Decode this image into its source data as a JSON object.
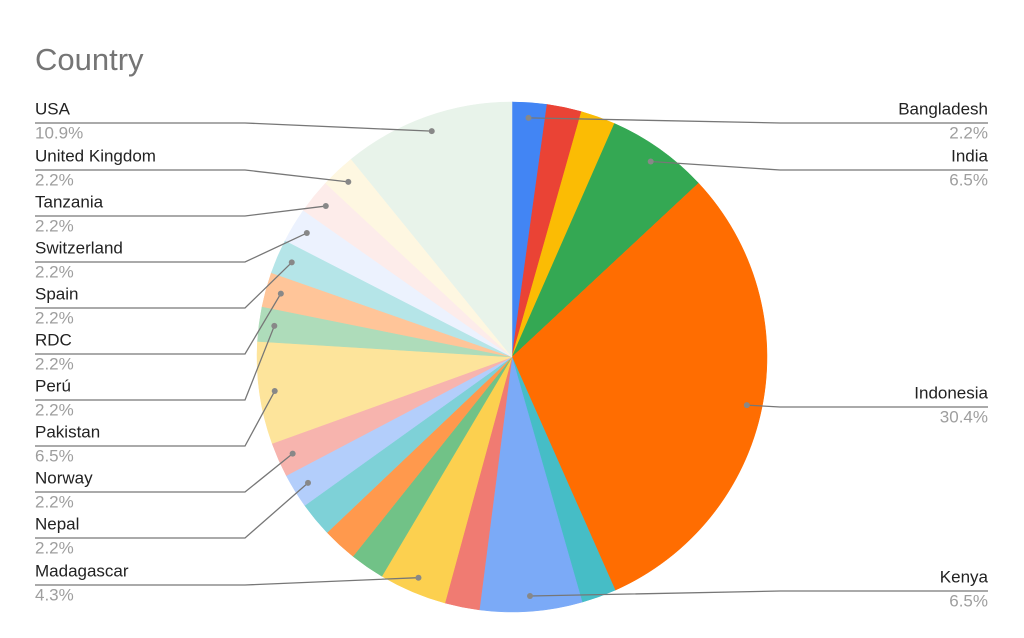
{
  "chart_data": {
    "type": "pie",
    "title": "Country",
    "categories": [
      "Bangladesh",
      null,
      null,
      "India",
      "Indonesia",
      null,
      "Kenya",
      null,
      "Madagascar",
      null,
      null,
      null,
      "Nepal",
      "Norway",
      "Pakistan",
      "Perú",
      "RDC",
      "Spain",
      "Switzerland",
      "Tanzania",
      "United Kingdom",
      "USA"
    ],
    "values": [
      2.2,
      2.2,
      2.2,
      6.5,
      30.4,
      2.2,
      6.5,
      2.2,
      4.3,
      2.2,
      2.2,
      2.2,
      2.2,
      2.2,
      6.5,
      2.2,
      2.2,
      2.2,
      2.2,
      2.2,
      2.2,
      10.9
    ],
    "value_labels": [
      "2.2%",
      null,
      null,
      "6.5%",
      "30.4%",
      null,
      "6.5%",
      null,
      "4.3%",
      null,
      null,
      null,
      "2.2%",
      "2.2%",
      "6.5%",
      "2.2%",
      "2.2%",
      "2.2%",
      "2.2%",
      "2.2%",
      "2.2%",
      "10.9%"
    ],
    "colors": [
      "#4285f4",
      "#ea4335",
      "#fbbc04",
      "#34a853",
      "#ff6d01",
      "#46bdc6",
      "#7baaf7",
      "#f07b72",
      "#fcd04f",
      "#71c287",
      "#ff994d",
      "#7ed1d7",
      "#b3cefb",
      "#f7b4ae",
      "#fde49b",
      "#aedcba",
      "#ffc599",
      "#b5e5e8",
      "#ecf2fe",
      "#fdecea",
      "#fef7e1",
      "#e8f3ea"
    ]
  }
}
